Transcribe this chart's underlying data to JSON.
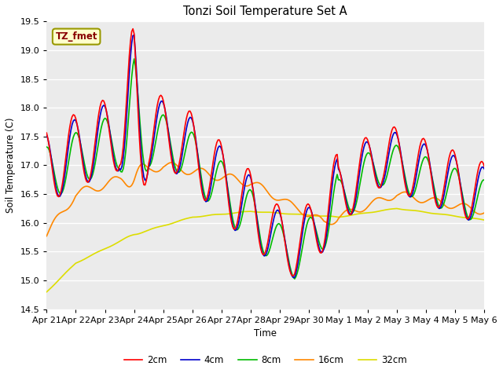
{
  "title": "Tonzi Soil Temperature Set A",
  "ylabel": "Soil Temperature (C)",
  "xlabel": "Time",
  "annotation": "TZ_fmet",
  "annotation_color": "#880000",
  "annotation_bg": "#ffffcc",
  "annotation_border": "#999900",
  "ylim": [
    14.5,
    19.5
  ],
  "fig_facecolor": "#ffffff",
  "plot_facecolor": "#ebebeb",
  "series_colors": {
    "2cm": "#ff0000",
    "4cm": "#0000cc",
    "8cm": "#00bb00",
    "16cm": "#ff8800",
    "32cm": "#dddd00"
  },
  "series_linewidth": 1.2,
  "x_tick_labels": [
    "Apr 21",
    "Apr 22",
    "Apr 23",
    "Apr 24",
    "Apr 25",
    "Apr 26",
    "Apr 27",
    "Apr 28",
    "Apr 29",
    "Apr 30",
    "May 1",
    "May 2",
    "May 3",
    "May 4",
    "May 5",
    "May 6"
  ],
  "x_tick_positions": [
    0,
    24,
    48,
    72,
    96,
    120,
    144,
    168,
    192,
    216,
    240,
    264,
    288,
    312,
    336,
    360
  ]
}
